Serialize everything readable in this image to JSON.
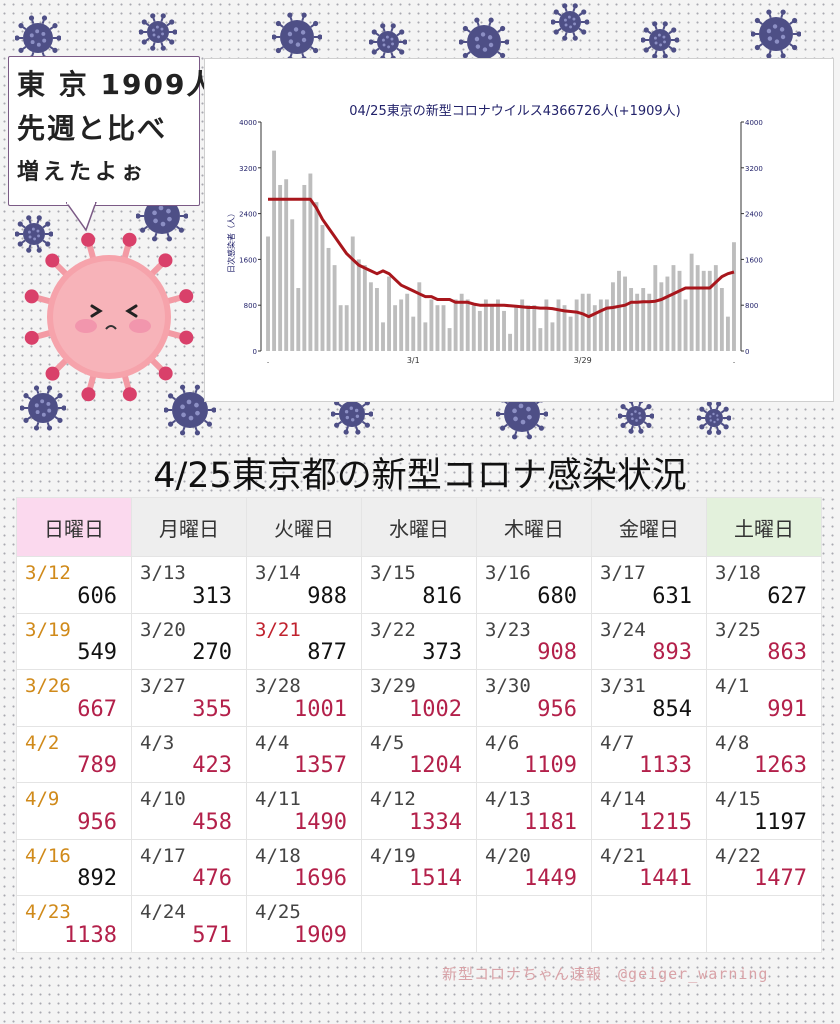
{
  "speech": {
    "line1": "東 京 1909人",
    "line2": "先週と比べ",
    "line3": "増えたよぉ"
  },
  "chart_data": {
    "type": "bar",
    "title": "04/25東京の新型コロナウイルス4366726人(+1909人)",
    "ylabel": "日次感染者（人）",
    "ylim": [
      0,
      4000
    ],
    "yticks": [
      0,
      800,
      1600,
      2400,
      3200,
      4000
    ],
    "xticks": [
      ".",
      "3/1",
      "3/29",
      "."
    ],
    "grid": false,
    "series": [
      {
        "kind": "bar",
        "values": [
          2000,
          3500,
          2900,
          3000,
          2300,
          1100,
          2900,
          3100,
          2600,
          2200,
          1800,
          1500,
          800,
          800,
          2000,
          1600,
          1500,
          1200,
          1100,
          500,
          1300,
          800,
          900,
          1000,
          600,
          1200,
          500,
          900,
          800,
          800,
          400,
          900,
          1000,
          900,
          800,
          700,
          900,
          800,
          900,
          700,
          300,
          800,
          900,
          800,
          800,
          400,
          900,
          500,
          900,
          800,
          600,
          900,
          1000,
          1000,
          800,
          900,
          900,
          1200,
          1400,
          1300,
          1100,
          1000,
          1100,
          1000,
          1500,
          1200,
          1300,
          1500,
          1400,
          900,
          1700,
          1500,
          1400,
          1400,
          1500,
          1100,
          600,
          1900
        ]
      },
      {
        "kind": "line",
        "color": "#a8161c",
        "values": [
          2650,
          2650,
          2650,
          2650,
          2650,
          2650,
          2650,
          2650,
          2500,
          2300,
          2150,
          2000,
          1850,
          1700,
          1600,
          1500,
          1450,
          1400,
          1350,
          1400,
          1350,
          1250,
          1150,
          1100,
          1050,
          1000,
          950,
          950,
          900,
          900,
          900,
          850,
          850,
          850,
          820,
          800,
          800,
          800,
          800,
          800,
          790,
          780,
          770,
          760,
          760,
          750,
          750,
          740,
          720,
          700,
          690,
          680,
          650,
          600,
          650,
          700,
          750,
          760,
          780,
          800,
          850,
          850,
          860,
          860,
          870,
          900,
          950,
          1000,
          1050,
          1100,
          1100,
          1100,
          1100,
          1100,
          1200,
          1300,
          1350,
          1380
        ]
      }
    ]
  },
  "table": {
    "title": "4/25東京都の新型コロナ感染状況",
    "headers": [
      "日曜日",
      "月曜日",
      "火曜日",
      "水曜日",
      "木曜日",
      "金曜日",
      "土曜日"
    ],
    "rows": [
      [
        {
          "date": "3/12",
          "value": "606",
          "dc": "sunday",
          "vc": ""
        },
        {
          "date": "3/13",
          "value": "313",
          "dc": "",
          "vc": ""
        },
        {
          "date": "3/14",
          "value": "988",
          "dc": "",
          "vc": ""
        },
        {
          "date": "3/15",
          "value": "816",
          "dc": "",
          "vc": ""
        },
        {
          "date": "3/16",
          "value": "680",
          "dc": "",
          "vc": ""
        },
        {
          "date": "3/17",
          "value": "631",
          "dc": "",
          "vc": ""
        },
        {
          "date": "3/18",
          "value": "627",
          "dc": "",
          "vc": ""
        }
      ],
      [
        {
          "date": "3/19",
          "value": "549",
          "dc": "sunday",
          "vc": ""
        },
        {
          "date": "3/20",
          "value": "270",
          "dc": "",
          "vc": ""
        },
        {
          "date": "3/21",
          "value": "877",
          "dc": "holiday",
          "vc": ""
        },
        {
          "date": "3/22",
          "value": "373",
          "dc": "",
          "vc": ""
        },
        {
          "date": "3/23",
          "value": "908",
          "dc": "",
          "vc": "up"
        },
        {
          "date": "3/24",
          "value": "893",
          "dc": "",
          "vc": "up"
        },
        {
          "date": "3/25",
          "value": "863",
          "dc": "",
          "vc": "up"
        }
      ],
      [
        {
          "date": "3/26",
          "value": "667",
          "dc": "sunday",
          "vc": "up"
        },
        {
          "date": "3/27",
          "value": "355",
          "dc": "",
          "vc": "up"
        },
        {
          "date": "3/28",
          "value": "1001",
          "dc": "",
          "vc": "up"
        },
        {
          "date": "3/29",
          "value": "1002",
          "dc": "",
          "vc": "up"
        },
        {
          "date": "3/30",
          "value": "956",
          "dc": "",
          "vc": "up"
        },
        {
          "date": "3/31",
          "value": "854",
          "dc": "",
          "vc": ""
        },
        {
          "date": "4/1",
          "value": "991",
          "dc": "",
          "vc": "up"
        }
      ],
      [
        {
          "date": "4/2",
          "value": "789",
          "dc": "sunday",
          "vc": "up"
        },
        {
          "date": "4/3",
          "value": "423",
          "dc": "",
          "vc": "up"
        },
        {
          "date": "4/4",
          "value": "1357",
          "dc": "",
          "vc": "up"
        },
        {
          "date": "4/5",
          "value": "1204",
          "dc": "",
          "vc": "up"
        },
        {
          "date": "4/6",
          "value": "1109",
          "dc": "",
          "vc": "up"
        },
        {
          "date": "4/7",
          "value": "1133",
          "dc": "",
          "vc": "up"
        },
        {
          "date": "4/8",
          "value": "1263",
          "dc": "",
          "vc": "up"
        }
      ],
      [
        {
          "date": "4/9",
          "value": "956",
          "dc": "sunday",
          "vc": "up"
        },
        {
          "date": "4/10",
          "value": "458",
          "dc": "",
          "vc": "up"
        },
        {
          "date": "4/11",
          "value": "1490",
          "dc": "",
          "vc": "up"
        },
        {
          "date": "4/12",
          "value": "1334",
          "dc": "",
          "vc": "up"
        },
        {
          "date": "4/13",
          "value": "1181",
          "dc": "",
          "vc": "up"
        },
        {
          "date": "4/14",
          "value": "1215",
          "dc": "",
          "vc": "up"
        },
        {
          "date": "4/15",
          "value": "1197",
          "dc": "",
          "vc": ""
        }
      ],
      [
        {
          "date": "4/16",
          "value": "892",
          "dc": "sunday",
          "vc": ""
        },
        {
          "date": "4/17",
          "value": "476",
          "dc": "",
          "vc": "up"
        },
        {
          "date": "4/18",
          "value": "1696",
          "dc": "",
          "vc": "up"
        },
        {
          "date": "4/19",
          "value": "1514",
          "dc": "",
          "vc": "up"
        },
        {
          "date": "4/20",
          "value": "1449",
          "dc": "",
          "vc": "up"
        },
        {
          "date": "4/21",
          "value": "1441",
          "dc": "",
          "vc": "up"
        },
        {
          "date": "4/22",
          "value": "1477",
          "dc": "",
          "vc": "up"
        }
      ],
      [
        {
          "date": "4/23",
          "value": "1138",
          "dc": "sunday",
          "vc": "up"
        },
        {
          "date": "4/24",
          "value": "571",
          "dc": "",
          "vc": "up"
        },
        {
          "date": "4/25",
          "value": "1909",
          "dc": "",
          "vc": "up"
        },
        {
          "date": "",
          "value": "",
          "dc": "",
          "vc": ""
        },
        {
          "date": "",
          "value": "",
          "dc": "",
          "vc": ""
        },
        {
          "date": "",
          "value": "",
          "dc": "",
          "vc": ""
        },
        {
          "date": "",
          "value": "",
          "dc": "",
          "vc": ""
        }
      ]
    ]
  },
  "credit": "新型コロナちゃん速報　@geiger_warning",
  "colors": {
    "bar": "#bdbdbd",
    "line": "#a8161c",
    "virus_body": "#4e4f86",
    "mascot": "#f28d96",
    "sunday_date": "#d08a1a",
    "increase_value": "#b3204a",
    "holiday_date": "#c0222e"
  }
}
